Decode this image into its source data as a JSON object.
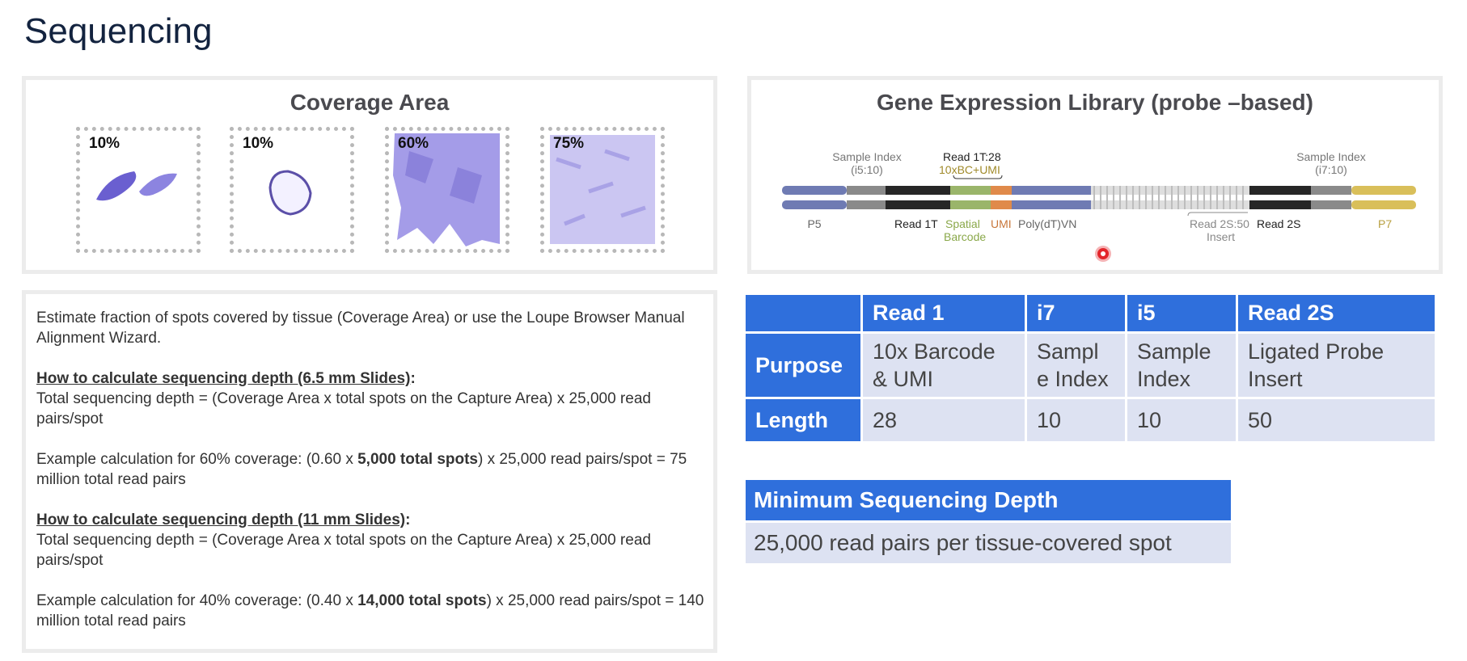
{
  "page": {
    "title": "Sequencing"
  },
  "coverage": {
    "title": "Coverage Area",
    "slides": [
      {
        "label": "10%"
      },
      {
        "label": "10%"
      },
      {
        "label": "60%"
      },
      {
        "label": "75%"
      }
    ]
  },
  "library": {
    "title": "Gene Expression Library (probe –based)",
    "labels": {
      "sample_index_left": "Sample Index",
      "i5_10": "(i5:10)",
      "read1t_28": "Read 1T:28",
      "bc_umi": "10xBC+UMI",
      "sample_index_right": "Sample Index",
      "i7_10": "(i7:10)",
      "p5": "P5",
      "read1t": "Read 1T",
      "spatial": "Spatial",
      "barcode": "Barcode",
      "umi": "UMI",
      "polydt": "Poly(dT)VN",
      "read2s50": "Read 2S:50",
      "insert": "Insert",
      "read2s": "Read 2S",
      "p7": "P7"
    },
    "colors": {
      "p5": "#6f7bb3",
      "gray": "#8a8a8a",
      "black": "#262626",
      "green": "#9ab56a",
      "orange": "#e08a4a",
      "yellow": "#d9bf5a"
    }
  },
  "description": {
    "intro": "Estimate fraction of spots covered by tissue (Coverage Area) or use the Loupe Browser Manual Alignment Wizard.",
    "section1": {
      "heading": "How to calculate sequencing depth (6.5 mm Slides)",
      "formula": "Total sequencing depth = (Coverage Area x total spots on the Capture Area) x 25,000 read pairs/spot",
      "example_pre": "Example calculation for 60% coverage: (0.60 x ",
      "example_bold": "5,000 total spots",
      "example_post": ") x 25,000 read pairs/spot = 75 million total read pairs"
    },
    "section2": {
      "heading": "How to calculate sequencing depth (11 mm Slides)",
      "formula": "Total sequencing depth = (Coverage Area x total spots on the Capture Area) x 25,000 read pairs/spot",
      "example_pre": "Example calculation for 40% coverage: (0.40 x ",
      "example_bold": "14,000 total spots",
      "example_post": ") x 25,000 read pairs/spot = 140 million total read pairs"
    }
  },
  "read_table": {
    "headers": [
      "",
      "Read 1",
      "i7",
      "i5",
      "Read 2S"
    ],
    "purpose": {
      "label": "Purpose",
      "values": [
        "10x Barcode & UMI",
        "Sampl e Index",
        "Sample Index",
        "Ligated Probe Insert"
      ]
    },
    "length": {
      "label": "Length",
      "values": [
        "28",
        "10",
        "10",
        "50"
      ]
    }
  },
  "depth_table": {
    "header": "Minimum Sequencing Depth",
    "value": "25,000 read pairs per tissue-covered spot"
  }
}
